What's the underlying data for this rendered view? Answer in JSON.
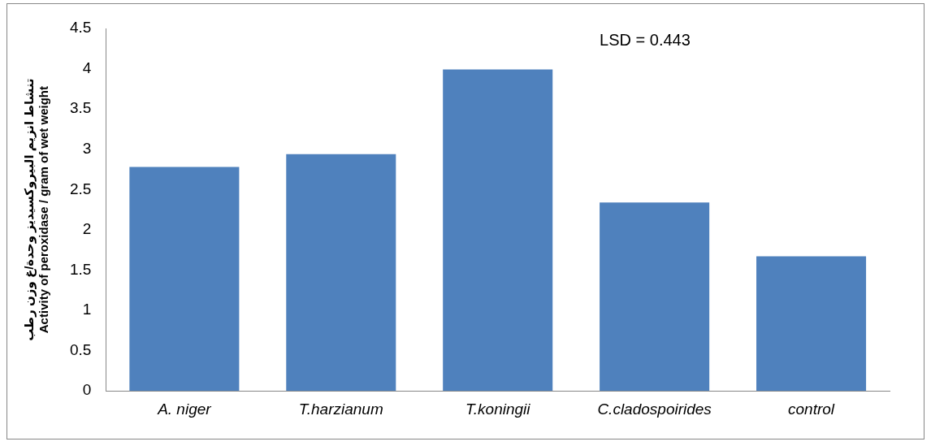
{
  "chart_data": {
    "type": "bar",
    "categories": [
      "A. niger",
      "T.harzianum",
      "T.koningii",
      "C.cladospoirides",
      "control"
    ],
    "values": [
      2.78,
      2.94,
      3.99,
      2.34,
      1.67
    ],
    "color": "#4f81bd",
    "ylabel": "تنشاط انزيم البيروكسيديز وحدة/غ وزن رطب\nActivity of peroxidase / gram of wet weight",
    "ylim": [
      0,
      4.5
    ],
    "yticks": [
      0,
      0.5,
      1,
      1.5,
      2,
      2.5,
      3,
      3.5,
      4,
      4.5
    ],
    "grid": false,
    "legend": false,
    "annotations": [
      "LSD = 0.443"
    ]
  }
}
